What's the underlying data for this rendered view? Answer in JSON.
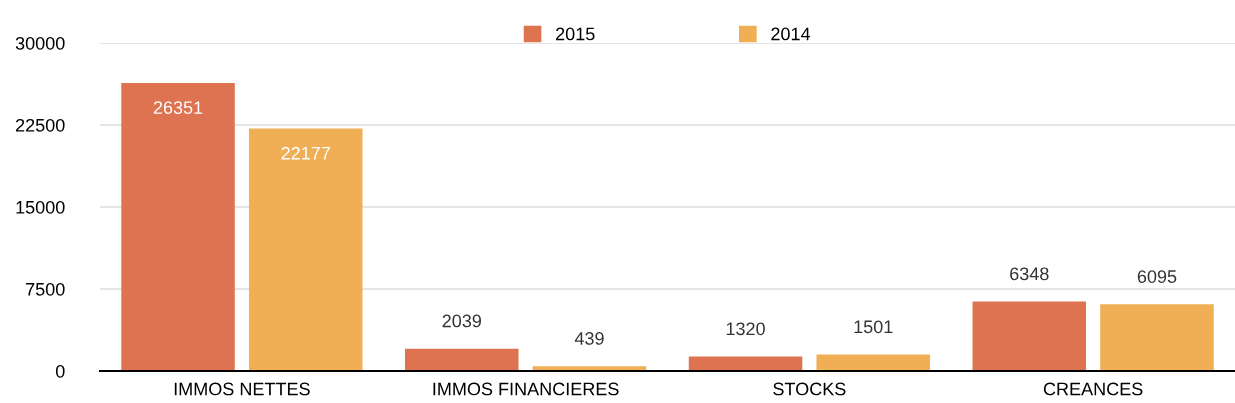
{
  "chart_data": {
    "type": "bar",
    "categories": [
      "IMMOS NETTES",
      "IMMOS FINANCIERES",
      "STOCKS",
      "CREANCES"
    ],
    "series": [
      {
        "name": "2015",
        "color": "#dd7350",
        "values": [
          26351,
          2039,
          1320,
          6348
        ]
      },
      {
        "name": "2014",
        "color": "#f0ae55",
        "values": [
          22177,
          439,
          1501,
          6095
        ]
      }
    ],
    "ylim": [
      0,
      30000
    ],
    "yticks": [
      0,
      7500,
      15000,
      22500,
      30000
    ],
    "grid": "y",
    "legend": "top",
    "data_labels": true
  }
}
